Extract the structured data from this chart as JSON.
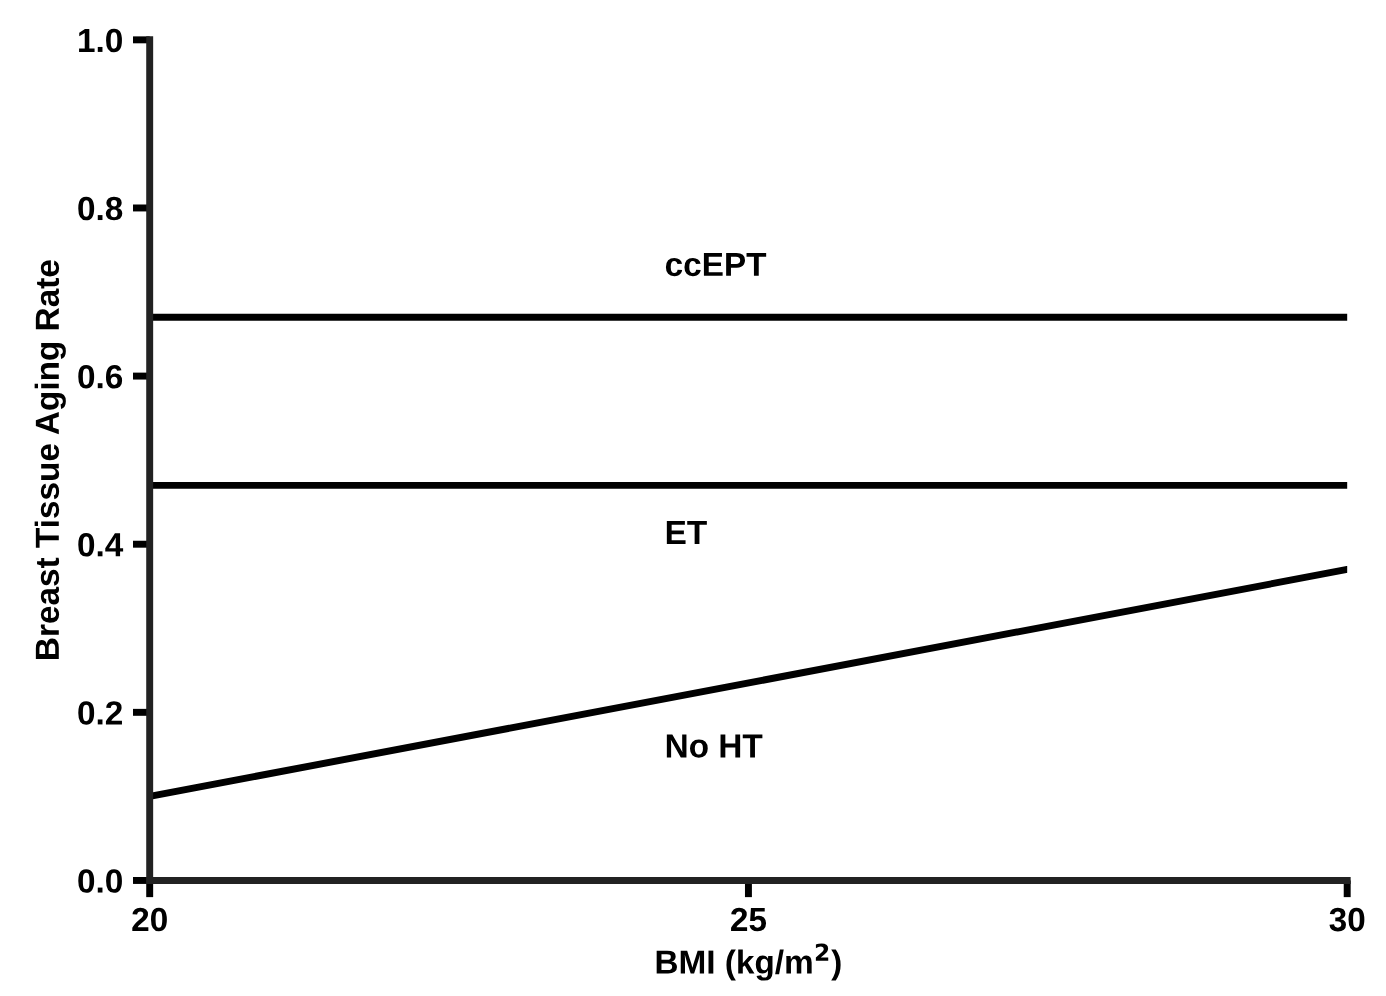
{
  "chart_data": {
    "type": "line",
    "xlabel": "BMI (kg/m$^{2}$)",
    "ylabel": "Breast Tissue Aging Rate",
    "xlim": [
      20,
      30
    ],
    "xticks": [
      20,
      25,
      30
    ],
    "ylim": [
      0,
      1
    ],
    "yticks": [
      "0.0",
      0.2,
      0.4,
      0.6,
      0.8,
      "1.0"
    ],
    "grid": false,
    "legend": false,
    "marker": "none",
    "line_style": "solid",
    "x": [
      20,
      30
    ],
    "series": [
      {
        "name": "ccEPT",
        "color": "#000000",
        "values": [
          0.67,
          0.67
        ]
      },
      {
        "name": "ET",
        "color": "#000000",
        "values": [
          0.47,
          0.47
        ]
      },
      {
        "name": "No HT",
        "color": "#000000",
        "values": [
          0.1,
          0.37
        ]
      }
    ]
  }
}
